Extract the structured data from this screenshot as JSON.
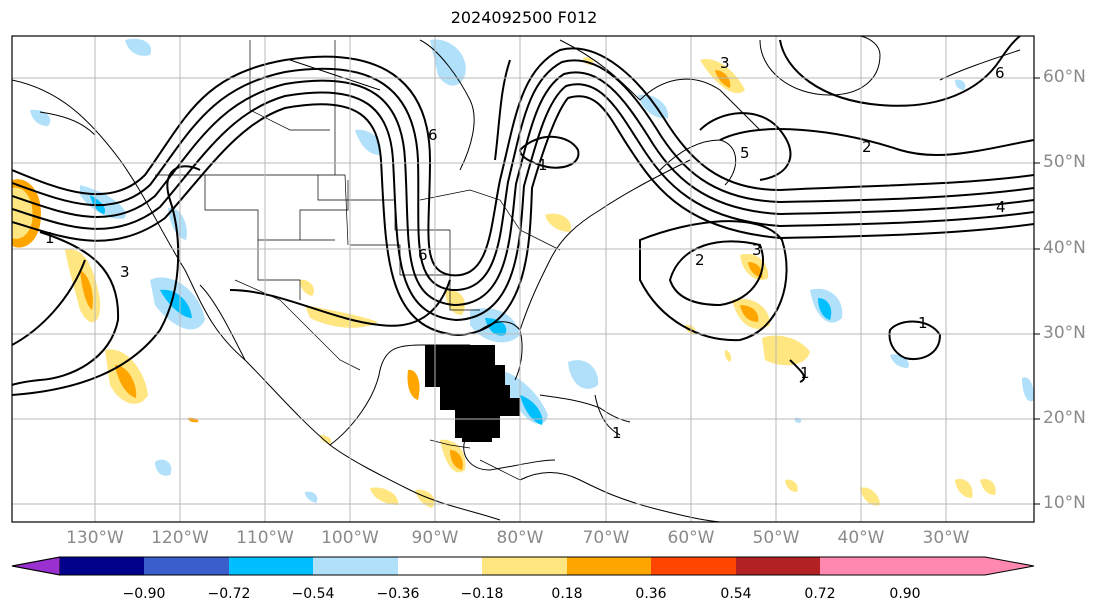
{
  "title": "2024092500 F012",
  "lon_labels": [
    "130°W",
    "120°W",
    "110°W",
    "100°W",
    "90°W",
    "80°W",
    "70°W",
    "60°W",
    "50°W",
    "40°W",
    "30°W"
  ],
  "lat_labels": [
    "60°N",
    "50°N",
    "40°N",
    "30°N",
    "20°N",
    "10°N"
  ],
  "contour_labels": [
    "1",
    "2",
    "3",
    "4",
    "5",
    "6"
  ],
  "colorbar": {
    "ticks": [
      "−0.90",
      "−0.72",
      "−0.54",
      "−0.36",
      "−0.18",
      "0.18",
      "0.36",
      "0.54",
      "0.72",
      "0.90"
    ],
    "colors": [
      "#9b30d0",
      "#00008b",
      "#3a5fcd",
      "#00bfff",
      "#b0e0fa",
      "#ffffff",
      "#ffe680",
      "#ffa500",
      "#ff4500",
      "#b22222",
      "#ff88b0"
    ]
  }
}
